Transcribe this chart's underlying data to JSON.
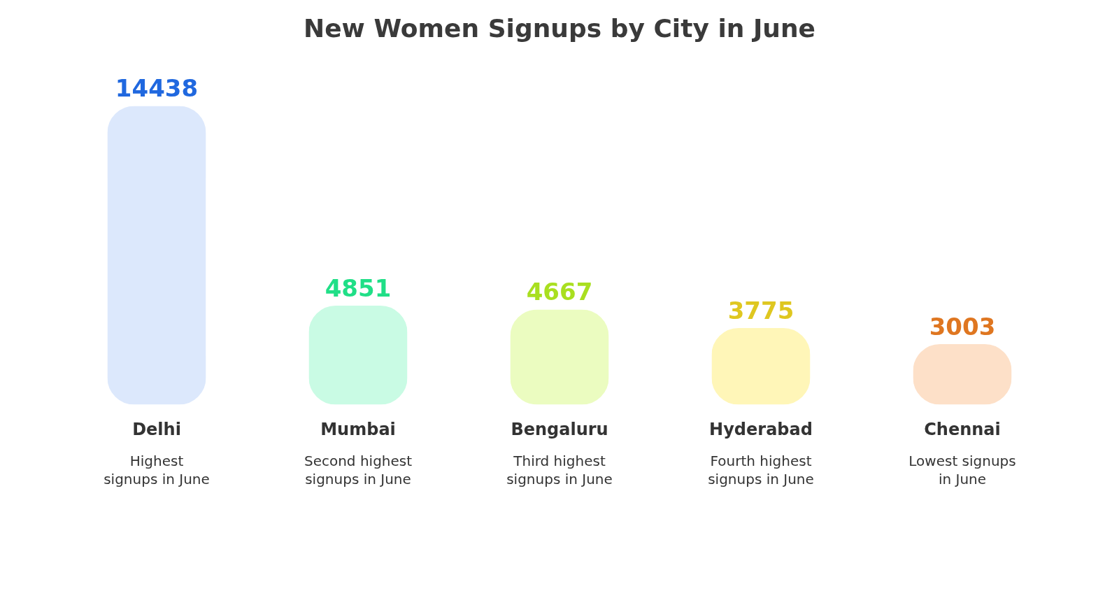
{
  "chart_data": {
    "type": "bar",
    "title": "New Women Signups by City in June",
    "categories": [
      "Delhi",
      "Mumbai",
      "Bengaluru",
      "Hyderabad",
      "Chennai"
    ],
    "values": [
      14438,
      4851,
      4667,
      3775,
      3003
    ],
    "colors": [
      "#dce8fc",
      "#c9fbe4",
      "#ebfcc0",
      "#fff6b8",
      "#fde0c8"
    ],
    "data_labels": true,
    "annotations": [
      "Highest signups in June",
      "Second highest signups in June",
      "Third highest signups in June",
      "Fourth highest signups in June",
      "Lowest signups in June"
    ]
  }
}
